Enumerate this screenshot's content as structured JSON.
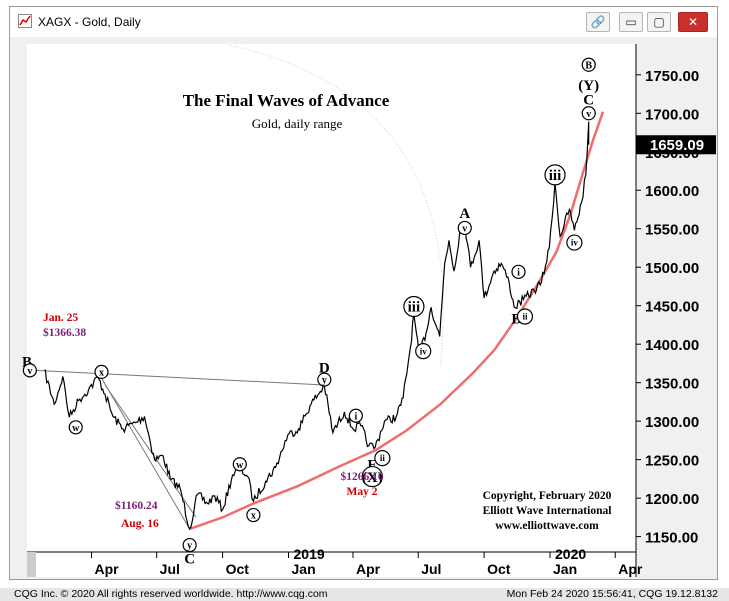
{
  "window": {
    "title": "XAGX - Gold, Daily",
    "buttons": {
      "link": "🔗",
      "minimize": "▭",
      "restore": "▢",
      "close": "✕"
    }
  },
  "status": {
    "left": "CQG Inc. © 2020 All rights reserved worldwide. http://www.cqg.com",
    "right": "Mon Feb 24 2020 15:56:41, CQG 19.12.8132"
  },
  "colors": {
    "price": "#000000",
    "channel": "#ee6e6e",
    "trendline": "#777777",
    "purple": "#7a1e7a",
    "red": "#cc0000",
    "last_price_bg": "#000000"
  },
  "chart_data": {
    "type": "line",
    "title": "The Final Waves of Advance",
    "subtitle": "Gold, daily range",
    "xlabel": "",
    "ylabel": "",
    "ylim": [
      1130,
      1790
    ],
    "xlim": [
      "2018-01-01",
      "2020-04-30"
    ],
    "y_ticks": [
      "1150.00",
      "1200.00",
      "1250.00",
      "1300.00",
      "1350.00",
      "1400.00",
      "1450.00",
      "1500.00",
      "1550.00",
      "1600.00",
      "1650.00",
      "1700.00",
      "1750.00"
    ],
    "x_ticks": [
      {
        "date": "2018-04-01",
        "label": "Apr"
      },
      {
        "date": "2018-07-01",
        "label": "Jul"
      },
      {
        "date": "2018-10-01",
        "label": "Oct"
      },
      {
        "date": "2019-01-01",
        "label": "Jan"
      },
      {
        "date": "2019-04-01",
        "label": "Apr"
      },
      {
        "date": "2019-07-01",
        "label": "Jul"
      },
      {
        "date": "2019-10-01",
        "label": "Oct"
      },
      {
        "date": "2020-01-01",
        "label": "Jan"
      },
      {
        "date": "2020-04-01",
        "label": "Apr"
      }
    ],
    "year_labels": [
      {
        "date": "2019-01-01",
        "label": "2019"
      },
      {
        "date": "2020-01-01",
        "label": "2020"
      }
    ],
    "last_price": "1659.09",
    "series": [
      {
        "values": [
          [
            "2018-01-25",
            1366
          ],
          [
            "2018-02-08",
            1322
          ],
          [
            "2018-02-20",
            1358
          ],
          [
            "2018-03-01",
            1305
          ],
          [
            "2018-03-14",
            1327
          ],
          [
            "2018-03-28",
            1341
          ],
          [
            "2018-04-10",
            1357
          ],
          [
            "2018-04-20",
            1335
          ],
          [
            "2018-05-01",
            1306
          ],
          [
            "2018-05-15",
            1290
          ],
          [
            "2018-06-01",
            1298
          ],
          [
            "2018-06-14",
            1306
          ],
          [
            "2018-06-28",
            1250
          ],
          [
            "2018-07-10",
            1255
          ],
          [
            "2018-07-20",
            1225
          ],
          [
            "2018-08-03",
            1212
          ],
          [
            "2018-08-16",
            1160
          ],
          [
            "2018-08-27",
            1205
          ],
          [
            "2018-09-10",
            1193
          ],
          [
            "2018-09-20",
            1203
          ],
          [
            "2018-10-01",
            1185
          ],
          [
            "2018-10-15",
            1230
          ],
          [
            "2018-10-26",
            1238
          ],
          [
            "2018-11-05",
            1228
          ],
          [
            "2018-11-13",
            1196
          ],
          [
            "2018-11-30",
            1222
          ],
          [
            "2018-12-14",
            1240
          ],
          [
            "2018-12-31",
            1282
          ],
          [
            "2019-01-15",
            1290
          ],
          [
            "2019-01-31",
            1320
          ],
          [
            "2019-02-20",
            1346
          ],
          [
            "2019-03-04",
            1285
          ],
          [
            "2019-03-20",
            1312
          ],
          [
            "2019-04-01",
            1290
          ],
          [
            "2019-04-12",
            1294
          ],
          [
            "2019-04-23",
            1268
          ],
          [
            "2019-05-02",
            1266
          ],
          [
            "2019-05-15",
            1300
          ],
          [
            "2019-05-31",
            1305
          ],
          [
            "2019-06-10",
            1330
          ],
          [
            "2019-06-20",
            1395
          ],
          [
            "2019-06-25",
            1439
          ],
          [
            "2019-07-02",
            1386
          ],
          [
            "2019-07-12",
            1415
          ],
          [
            "2019-07-19",
            1448
          ],
          [
            "2019-07-31",
            1410
          ],
          [
            "2019-08-07",
            1505
          ],
          [
            "2019-08-13",
            1535
          ],
          [
            "2019-08-20",
            1495
          ],
          [
            "2019-08-28",
            1545
          ],
          [
            "2019-09-04",
            1557
          ],
          [
            "2019-09-12",
            1500
          ],
          [
            "2019-09-24",
            1535
          ],
          [
            "2019-10-01",
            1460
          ],
          [
            "2019-10-15",
            1495
          ],
          [
            "2019-10-25",
            1505
          ],
          [
            "2019-11-05",
            1480
          ],
          [
            "2019-11-12",
            1448
          ],
          [
            "2019-11-25",
            1458
          ],
          [
            "2019-12-10",
            1470
          ],
          [
            "2019-12-20",
            1480
          ],
          [
            "2019-12-31",
            1525
          ],
          [
            "2020-01-08",
            1610
          ],
          [
            "2020-01-15",
            1540
          ],
          [
            "2020-01-28",
            1575
          ],
          [
            "2020-02-04",
            1548
          ],
          [
            "2020-02-14",
            1584
          ],
          [
            "2020-02-20",
            1620
          ],
          [
            "2020-02-24",
            1689
          ],
          [
            "2020-02-24",
            1659
          ]
        ]
      }
    ],
    "trendlines": [
      {
        "from": [
          "2018-01-12",
          1366
        ],
        "to": [
          "2019-02-20",
          1347
        ]
      },
      {
        "from": [
          "2018-04-15",
          1356
        ],
        "to": [
          "2018-08-16",
          1160
        ]
      },
      {
        "from": [
          "2018-04-20",
          1347
        ],
        "to": [
          "2018-08-25",
          1175
        ]
      }
    ],
    "channel": [
      [
        "2018-08-16",
        1160
      ],
      [
        "2018-10-01",
        1175
      ],
      [
        "2018-11-13",
        1193
      ],
      [
        "2019-01-15",
        1216
      ],
      [
        "2019-03-15",
        1242
      ],
      [
        "2019-05-02",
        1262
      ],
      [
        "2019-06-15",
        1288
      ],
      [
        "2019-08-01",
        1322
      ],
      [
        "2019-09-15",
        1362
      ],
      [
        "2019-10-15",
        1392
      ],
      [
        "2019-11-14",
        1432
      ],
      [
        "2019-12-15",
        1478
      ],
      [
        "2020-01-10",
        1520
      ],
      [
        "2020-01-30",
        1570
      ],
      [
        "2020-02-15",
        1620
      ],
      [
        "2020-03-01",
        1665
      ],
      [
        "2020-03-15",
        1702
      ]
    ],
    "annotations": [
      {
        "text": "The Final Waves of Advance"
      },
      {
        "text": "Gold, daily range"
      },
      {
        "text": "Jan. 25"
      },
      {
        "text": "$1366.38"
      },
      {
        "text": "$1160.24"
      },
      {
        "text": "Aug. 16"
      },
      {
        "text": "$1266.10"
      },
      {
        "text": "May 2"
      },
      {
        "text": "Copyright, February 2020"
      },
      {
        "text": "Elliott Wave International"
      },
      {
        "text": "www.elliottwave.com"
      }
    ],
    "wave_labels": [
      {
        "text": "B",
        "date": "2018-01-01",
        "price": 1378,
        "circled": false
      },
      {
        "text": "v",
        "date": "2018-01-05",
        "price": 1366,
        "circled": true
      },
      {
        "text": "w",
        "date": "2018-03-10",
        "price": 1292,
        "circled": true
      },
      {
        "text": "x",
        "date": "2018-04-15",
        "price": 1364,
        "circled": true
      },
      {
        "text": "y",
        "date": "2018-08-16",
        "price": 1139,
        "circled": true
      },
      {
        "text": "C",
        "date": "2018-08-16",
        "price": 1122,
        "circled": false
      },
      {
        "text": "w",
        "date": "2018-10-25",
        "price": 1244,
        "circled": true
      },
      {
        "text": "x",
        "date": "2018-11-13",
        "price": 1178,
        "circled": true
      },
      {
        "text": "D",
        "date": "2019-02-20",
        "price": 1370,
        "circled": false
      },
      {
        "text": "y",
        "date": "2019-02-20",
        "price": 1354,
        "circled": true
      },
      {
        "text": "i",
        "date": "2019-04-05",
        "price": 1307,
        "circled": true
      },
      {
        "text": "ii",
        "date": "2019-05-12",
        "price": 1252,
        "circled": true
      },
      {
        "text": "E",
        "date": "2019-04-28",
        "price": 1244,
        "circled": false
      },
      {
        "text": "(X)",
        "date": "2019-04-28",
        "price": 1228,
        "circled": true
      },
      {
        "text": "iii",
        "date": "2019-06-25",
        "price": 1449,
        "circled": true
      },
      {
        "text": "iv",
        "date": "2019-07-08",
        "price": 1391,
        "circled": true
      },
      {
        "text": "A",
        "date": "2019-09-04",
        "price": 1571,
        "circled": false
      },
      {
        "text": "v",
        "date": "2019-09-04",
        "price": 1551,
        "circled": true
      },
      {
        "text": "i",
        "date": "2019-11-18",
        "price": 1494,
        "circled": true
      },
      {
        "text": "B",
        "date": "2019-11-15",
        "price": 1434,
        "circled": false
      },
      {
        "text": "ii",
        "date": "2019-11-27",
        "price": 1436,
        "circled": true
      },
      {
        "text": "iii",
        "date": "2020-01-08",
        "price": 1620,
        "circled": true
      },
      {
        "text": "iv",
        "date": "2020-02-04",
        "price": 1532,
        "circled": true
      },
      {
        "text": "v",
        "date": "2020-02-24",
        "price": 1700,
        "circled": true
      },
      {
        "text": "C",
        "date": "2020-02-24",
        "price": 1718,
        "circled": false
      },
      {
        "text": "(Y)",
        "date": "2020-02-24",
        "price": 1737,
        "circled": false
      },
      {
        "text": "B",
        "date": "2020-02-24",
        "price": 1763,
        "circled": true
      }
    ]
  }
}
